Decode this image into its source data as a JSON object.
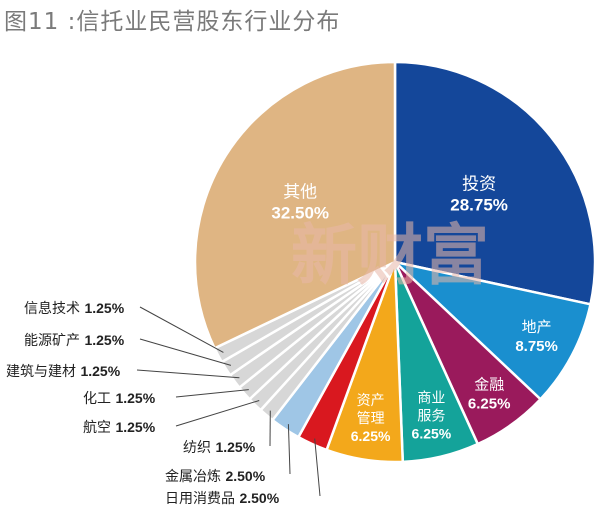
{
  "chart_data": {
    "type": "pie",
    "title": "图11 :信托业民营股东行业分布",
    "slices": [
      {
        "name": "投资",
        "value": 28.75,
        "label": "28.75%",
        "color": "#14479a"
      },
      {
        "name": "地产",
        "value": 8.75,
        "label": "8.75%",
        "color": "#1a8fcf"
      },
      {
        "name": "金融",
        "value": 6.25,
        "label": "6.25%",
        "color": "#9a1a5c"
      },
      {
        "name": "商业服务",
        "value": 6.25,
        "label": "6.25%",
        "color": "#14a39a"
      },
      {
        "name": "资产管理",
        "value": 6.25,
        "label": "6.25%",
        "color": "#f3a81b"
      },
      {
        "name": "日用消费品",
        "value": 2.5,
        "label": "2.50%",
        "color": "#d9181f"
      },
      {
        "name": "金属冶炼",
        "value": 2.5,
        "label": "2.50%",
        "color": "#9fc6e6"
      },
      {
        "name": "纺织",
        "value": 1.25,
        "label": "1.25%",
        "color": "#d7d7d7"
      },
      {
        "name": "航空",
        "value": 1.25,
        "label": "1.25%",
        "color": "#d7d7d7"
      },
      {
        "name": "化工",
        "value": 1.25,
        "label": "1.25%",
        "color": "#d7d7d7"
      },
      {
        "name": "建筑与建材",
        "value": 1.25,
        "label": "1.25%",
        "color": "#d7d7d7"
      },
      {
        "name": "能源矿产",
        "value": 1.25,
        "label": "1.25%",
        "color": "#d7d7d7"
      },
      {
        "name": "信息技术",
        "value": 1.25,
        "label": "1.25%",
        "color": "#d7d7d7"
      },
      {
        "name": "其他",
        "value": 32.5,
        "label": "32.50%",
        "color": "#dfb583"
      }
    ],
    "watermark": "新财富"
  }
}
